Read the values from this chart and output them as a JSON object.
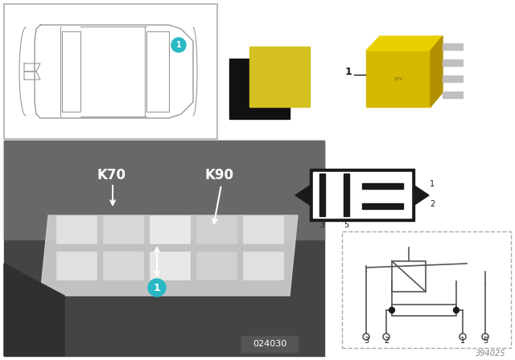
{
  "bg_color": "#ffffff",
  "teal_color": "#29b8c4",
  "relay_yellow": "#d4c020",
  "relay_yellow2": "#c8a800",
  "relay_dark": "#8a7000",
  "black": "#1a1a1a",
  "gray_line": "#888888",
  "dark_gray": "#555555",
  "label_k70": "K70",
  "label_k90": "K90",
  "code_bottom_photo": "024030",
  "code_bottom_right": "394025",
  "photo_bg": "#707070",
  "photo_bg2": "#505050"
}
